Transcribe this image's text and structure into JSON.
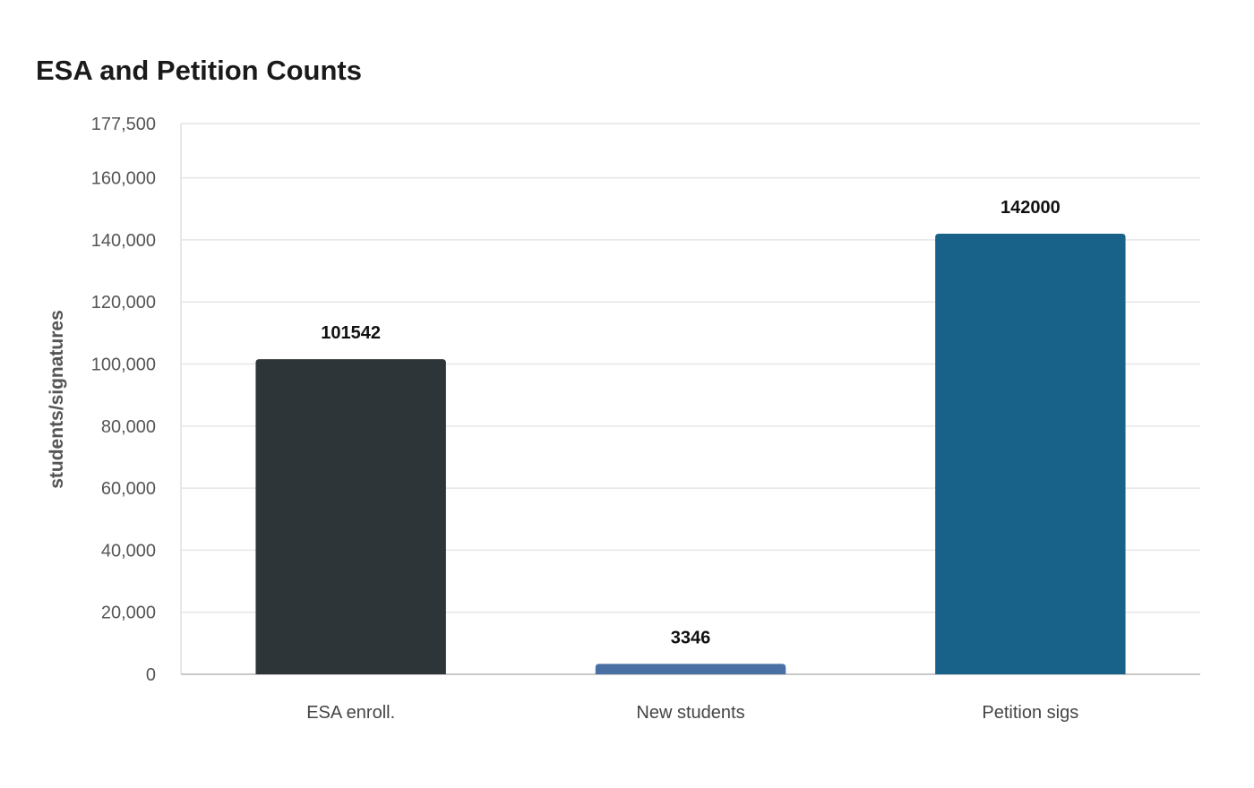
{
  "chart_data": {
    "type": "bar",
    "title": "ESA and Petition Counts",
    "xlabel": "",
    "ylabel": "students/signatures",
    "categories": [
      "ESA enroll.",
      "New students",
      "Petition sigs"
    ],
    "values": [
      101542,
      3346,
      142000
    ],
    "value_labels": [
      "101542",
      "3346",
      "142000"
    ],
    "colors": [
      "#2e3538",
      "#4a6fa5",
      "#186289"
    ],
    "ylim": [
      0,
      177500
    ],
    "yticks": [
      0,
      20000,
      40000,
      60000,
      80000,
      100000,
      120000,
      140000,
      160000,
      177500
    ],
    "ytick_labels": [
      "0",
      "20,000",
      "40,000",
      "60,000",
      "80,000",
      "100,000",
      "120,000",
      "140,000",
      "160,000",
      "177,500"
    ],
    "grid": true,
    "legend": "none"
  }
}
